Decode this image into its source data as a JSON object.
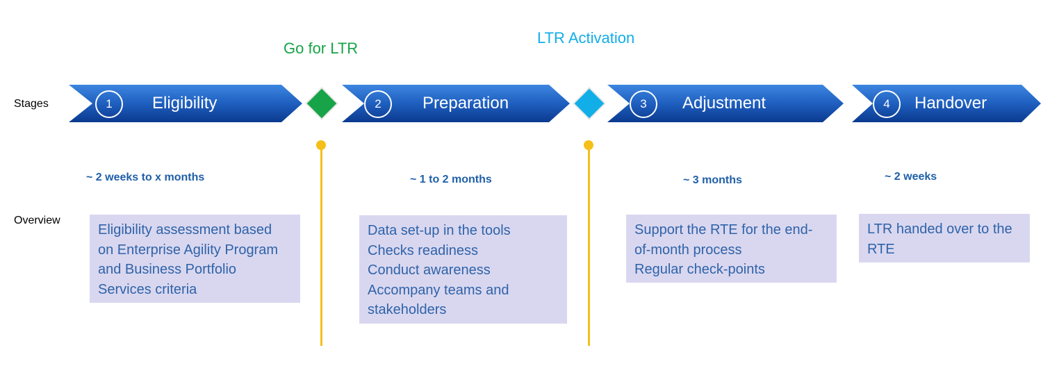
{
  "row_labels": {
    "stages": "Stages",
    "overview": "Overview"
  },
  "milestones": [
    {
      "title": "Go for LTR",
      "color": "#17a347"
    },
    {
      "title": "LTR Activation",
      "color": "#12aee8"
    }
  ],
  "stages": [
    {
      "number": "1",
      "name": "Eligibility",
      "duration": "~ 2 weeks  to x months",
      "overview": [
        "Eligibility assessment based",
        "on Enterprise Agility Program",
        "and Business Portfolio",
        "Services criteria"
      ]
    },
    {
      "number": "2",
      "name": "Preparation",
      "duration": "~ 1 to 2 months",
      "overview": [
        "Data set-up in the tools",
        "Checks readiness",
        "Conduct awareness",
        "Accompany teams and",
        "stakeholders"
      ]
    },
    {
      "number": "3",
      "name": "Adjustment",
      "duration": "~ 3 months",
      "overview": [
        "Support the RTE for the end-",
        "of-month process",
        "Regular check-points"
      ]
    },
    {
      "number": "4",
      "name": "Handover",
      "duration": "~ 2 weeks",
      "overview": [
        "LTR handed over to the",
        "RTE"
      ]
    }
  ],
  "colors": {
    "arrow_top": "#2f78d6",
    "arrow_bottom": "#0d3f96",
    "timeline": "#f5bf1a",
    "duration_text": "#1f5fa8",
    "overview_bg": "#d9d7f0",
    "overview_text": "#2f63a8"
  }
}
